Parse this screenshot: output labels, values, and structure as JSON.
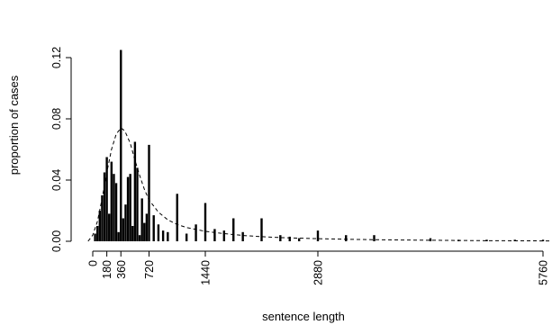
{
  "chart_data": {
    "type": "bar",
    "title": "",
    "xlabel": "sentence length",
    "ylabel": "proportion of cases",
    "xlim": [
      0,
      6000
    ],
    "ylim": [
      0,
      0.13
    ],
    "x_ticks": [
      0,
      180,
      360,
      720,
      1440,
      2880,
      5760
    ],
    "x_tick_labels": [
      "0",
      "180",
      "360",
      "720",
      "1440",
      "2880",
      "5760"
    ],
    "y_ticks": [
      0,
      0.04,
      0.08,
      0.12
    ],
    "y_tick_labels": [
      "0.00",
      "0.04",
      "0.08",
      "0.12"
    ],
    "grid": false,
    "legend": "none",
    "series": [
      {
        "type": "bar",
        "x": [
          30,
          60,
          90,
          120,
          150,
          180,
          210,
          240,
          270,
          300,
          330,
          360,
          390,
          420,
          450,
          480,
          510,
          540,
          570,
          600,
          630,
          660,
          690,
          720,
          780,
          840,
          900,
          960,
          1080,
          1200,
          1320,
          1440,
          1560,
          1680,
          1800,
          1920,
          2160,
          2400,
          2520,
          2640,
          2880,
          3240,
          3600,
          4320,
          4680,
          5040,
          5400,
          5760
        ],
        "values": [
          0.005,
          0.01,
          0.02,
          0.03,
          0.045,
          0.055,
          0.018,
          0.052,
          0.044,
          0.038,
          0.006,
          0.125,
          0.015,
          0.024,
          0.042,
          0.044,
          0.01,
          0.065,
          0.048,
          0.004,
          0.028,
          0.012,
          0.018,
          0.063,
          0.017,
          0.011,
          0.007,
          0.006,
          0.031,
          0.005,
          0.011,
          0.025,
          0.008,
          0.007,
          0.015,
          0.006,
          0.015,
          0.004,
          0.003,
          0.002,
          0.007,
          0.004,
          0.004,
          0.002,
          0.001,
          0.001,
          0.001,
          0.001
        ]
      },
      {
        "type": "line",
        "style": "dashed",
        "x": [
          -60,
          0,
          60,
          120,
          180,
          240,
          300,
          330,
          360,
          390,
          420,
          480,
          540,
          600,
          660,
          720,
          840,
          960,
          1080,
          1200,
          1440,
          1680,
          1920,
          2160,
          2400,
          2880,
          3360,
          4000,
          5000,
          6000
        ],
        "values": [
          0.0,
          0.004,
          0.013,
          0.028,
          0.045,
          0.06,
          0.07,
          0.072,
          0.074,
          0.073,
          0.071,
          0.064,
          0.053,
          0.043,
          0.034,
          0.027,
          0.019,
          0.014,
          0.011,
          0.009,
          0.0065,
          0.005,
          0.0038,
          0.003,
          0.0024,
          0.0017,
          0.0012,
          0.0008,
          0.0004,
          0.0002
        ]
      }
    ]
  }
}
